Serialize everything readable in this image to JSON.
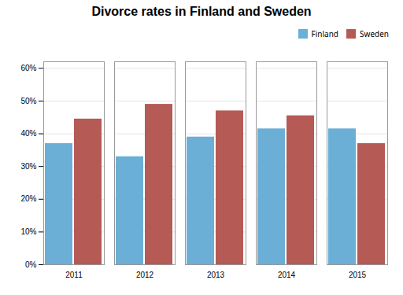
{
  "chart_data": {
    "type": "bar",
    "title": "Divorce rates in Finland and Sweden",
    "categories": [
      "2011",
      "2012",
      "2013",
      "2014",
      "2015"
    ],
    "series": [
      {
        "name": "Finland",
        "color": "#6baed6",
        "values": [
          0.37,
          0.33,
          0.39,
          0.415,
          0.415
        ]
      },
      {
        "name": "Sweden",
        "color": "#b55a55",
        "values": [
          0.445,
          0.49,
          0.47,
          0.455,
          0.37
        ]
      }
    ],
    "ylim": [
      0,
      0.62
    ],
    "yticks": [
      {
        "value": 0,
        "label": "0%"
      },
      {
        "value": 0.1,
        "label": "10%"
      },
      {
        "value": 0.2,
        "label": "20%"
      },
      {
        "value": 0.3,
        "label": "30%"
      },
      {
        "value": 0.4,
        "label": "40%"
      },
      {
        "value": 0.5,
        "label": "50%"
      },
      {
        "value": 0.6,
        "label": "60%"
      }
    ],
    "grid": true,
    "legend": "upper right"
  }
}
